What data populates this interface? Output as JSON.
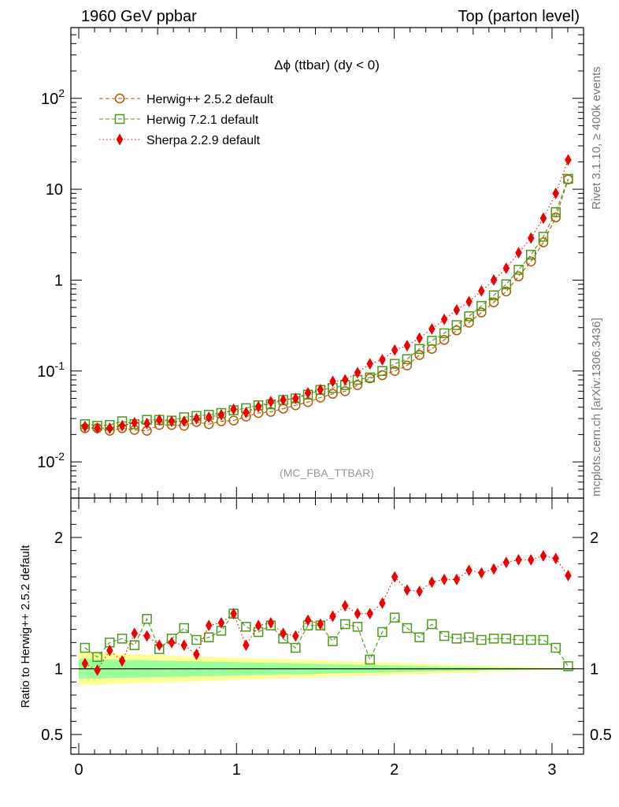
{
  "header": {
    "left_label": "1960 GeV ppbar",
    "right_label": "Top (parton level)"
  },
  "side_labels": {
    "rivet": "Rivet 3.1.10, ≥ 400k events",
    "mcplots": "mcplots.cern.ch [arXiv:1306.3436]"
  },
  "analysis_tag": "(MC_FBA_TTBAR)",
  "chart_data": [
    {
      "type": "line",
      "title": "Δϕ (ttbar) (dy < 0)",
      "yscale": "log",
      "xlim": [
        -0.05,
        3.2
      ],
      "ylim": [
        0.004,
        600
      ],
      "ytick_labels": [
        "10^-2",
        "10^-1",
        "1",
        "10",
        "10^2"
      ],
      "legend_position": "top-left",
      "x": [
        0.0393,
        0.1178,
        0.1963,
        0.2749,
        0.3534,
        0.432,
        0.5105,
        0.589,
        0.6676,
        0.7461,
        0.8247,
        0.9032,
        0.9817,
        1.0603,
        1.1388,
        1.2174,
        1.2959,
        1.3744,
        1.453,
        1.5315,
        1.6101,
        1.6886,
        1.7671,
        1.8457,
        1.9242,
        2.0028,
        2.0813,
        2.1598,
        2.2384,
        2.3169,
        2.3955,
        2.474,
        2.5525,
        2.6311,
        2.7096,
        2.7882,
        2.8667,
        2.9452,
        3.0238,
        3.1023
      ],
      "series": [
        {
          "name": "Herwig++ 2.5.2 default",
          "color": "#b35900",
          "marker": "open-circle",
          "linestyle": "dashed",
          "values": [
            0.0235,
            0.0235,
            0.022,
            0.0235,
            0.0225,
            0.022,
            0.0255,
            0.0255,
            0.025,
            0.0275,
            0.026,
            0.028,
            0.0285,
            0.0315,
            0.0345,
            0.0355,
            0.0385,
            0.042,
            0.0455,
            0.051,
            0.056,
            0.06,
            0.07,
            0.083,
            0.09,
            0.1,
            0.115,
            0.15,
            0.175,
            0.22,
            0.28,
            0.34,
            0.44,
            0.57,
            0.75,
            1.1,
            1.6,
            2.6,
            4.9,
            12.8
          ]
        },
        {
          "name": "Herwig 7.2.1 default",
          "color": "#4a9a1a",
          "marker": "open-square",
          "linestyle": "dashed",
          "values": [
            0.026,
            0.025,
            0.0255,
            0.028,
            0.026,
            0.029,
            0.029,
            0.0285,
            0.031,
            0.032,
            0.033,
            0.0345,
            0.037,
            0.039,
            0.042,
            0.043,
            0.048,
            0.05,
            0.055,
            0.062,
            0.065,
            0.07,
            0.08,
            0.085,
            0.1,
            0.12,
            0.135,
            0.175,
            0.215,
            0.26,
            0.32,
            0.4,
            0.52,
            0.68,
            0.9,
            1.3,
            1.9,
            3.0,
            5.6,
            13.0
          ]
        },
        {
          "name": "Sherpa 2.2.9 default",
          "color": "#ee0000",
          "marker": "filled-diamond",
          "linestyle": "dotted",
          "values": [
            0.0245,
            0.0235,
            0.0235,
            0.025,
            0.027,
            0.0265,
            0.029,
            0.028,
            0.028,
            0.03,
            0.031,
            0.033,
            0.038,
            0.035,
            0.0405,
            0.046,
            0.048,
            0.05,
            0.0575,
            0.0625,
            0.077,
            0.08,
            0.096,
            0.12,
            0.133,
            0.17,
            0.19,
            0.23,
            0.29,
            0.37,
            0.47,
            0.58,
            0.76,
            1.0,
            1.35,
            2.0,
            2.9,
            4.8,
            9.0,
            21.0
          ]
        }
      ]
    },
    {
      "type": "line",
      "ylabel": "Ratio to Herwig++ 2.5.2 default",
      "xlim": [
        -0.05,
        3.2
      ],
      "ylim": [
        0.35,
        2.3
      ],
      "xtick_labels": [
        "0",
        "1",
        "2",
        "3"
      ],
      "ytick_labels": [
        "0.5",
        "1",
        "2"
      ],
      "reference_line": 1,
      "uncertainty_bands": {
        "outer_color": "#ffff99",
        "inner_color": "#99ff99",
        "outer_halfwidth": [
          0.125,
          0.122,
          0.118,
          0.114,
          0.11,
          0.107,
          0.104,
          0.101,
          0.097,
          0.094,
          0.091,
          0.088,
          0.085,
          0.082,
          0.079,
          0.076,
          0.073,
          0.07,
          0.067,
          0.064,
          0.061,
          0.058,
          0.055,
          0.052,
          0.049,
          0.046,
          0.043,
          0.04,
          0.037,
          0.034,
          0.031,
          0.028,
          0.025,
          0.022,
          0.019,
          0.016,
          0.013,
          0.01,
          0.008,
          0.006
        ],
        "inner_halfwidth": [
          0.075,
          0.073,
          0.071,
          0.069,
          0.067,
          0.065,
          0.063,
          0.061,
          0.059,
          0.057,
          0.055,
          0.053,
          0.051,
          0.049,
          0.047,
          0.045,
          0.043,
          0.041,
          0.039,
          0.037,
          0.035,
          0.033,
          0.031,
          0.029,
          0.027,
          0.025,
          0.023,
          0.021,
          0.019,
          0.017,
          0.015,
          0.013,
          0.011,
          0.009,
          0.008,
          0.007,
          0.006,
          0.005,
          0.004,
          0.003
        ]
      },
      "series": [
        {
          "name": "Herwig 7.2.1 default",
          "color": "#4a9a1a",
          "marker": "open-square",
          "linestyle": "dashed",
          "values": [
            1.16,
            1.09,
            1.2,
            1.23,
            1.18,
            1.38,
            1.15,
            1.23,
            1.31,
            1.22,
            1.24,
            1.29,
            1.42,
            1.32,
            1.28,
            1.33,
            1.23,
            1.16,
            1.33,
            1.33,
            1.21,
            1.34,
            1.32,
            1.07,
            1.28,
            1.39,
            1.31,
            1.24,
            1.34,
            1.25,
            1.23,
            1.24,
            1.22,
            1.23,
            1.23,
            1.22,
            1.22,
            1.22,
            1.16,
            1.02
          ]
        },
        {
          "name": "Sherpa 2.2.9 default",
          "color": "#ee0000",
          "marker": "filled-diamond",
          "linestyle": "dotted",
          "values": [
            1.04,
            0.99,
            1.14,
            1.06,
            1.27,
            1.25,
            1.18,
            1.2,
            1.18,
            1.11,
            1.33,
            1.35,
            1.42,
            1.18,
            1.33,
            1.35,
            1.27,
            1.25,
            1.37,
            1.34,
            1.4,
            1.48,
            1.42,
            1.42,
            1.5,
            1.7,
            1.6,
            1.59,
            1.66,
            1.68,
            1.68,
            1.75,
            1.73,
            1.76,
            1.81,
            1.83,
            1.83,
            1.86,
            1.84,
            1.71
          ]
        }
      ]
    }
  ]
}
